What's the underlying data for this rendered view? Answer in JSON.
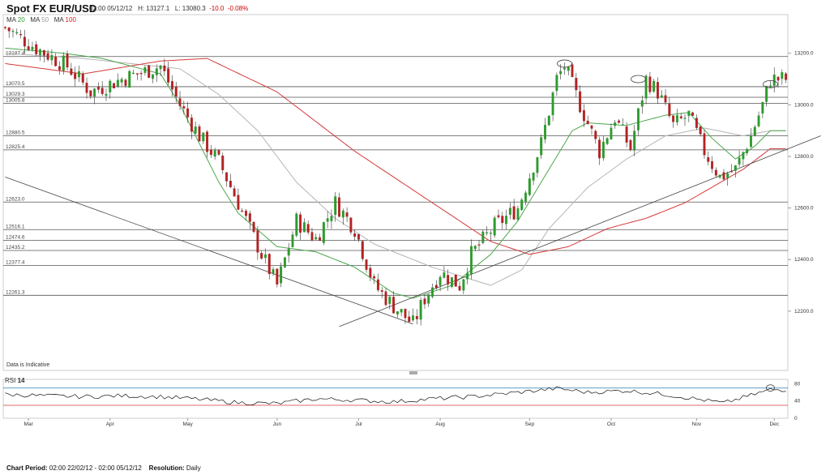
{
  "header": {
    "title": "Spot FX EUR/USD",
    "datetime": "02:00 05/12/12",
    "high": "H: 13127.1",
    "low": "L: 13080.3",
    "change": "-10.0",
    "change_pct": "-0.08%"
  },
  "ma_legend": {
    "ma20": {
      "label": "MA",
      "period": "20",
      "color": "#2e9a2e"
    },
    "ma50": {
      "label": "MA",
      "period": "50",
      "color": "#aaaaaa"
    },
    "ma100": {
      "label": "MA",
      "period": "100",
      "color": "#cc2222"
    }
  },
  "indicative_note": "Data is Indicative",
  "rsi": {
    "label": "RSI",
    "period": "14",
    "overbought": 70,
    "oversold": 30,
    "ticks": [
      "80",
      "40",
      "0"
    ]
  },
  "footer": {
    "period_label": "Chart Period:",
    "period_value": "02:00 22/02/12 - 02:00 05/12/12",
    "resolution_label": "Resolution:",
    "resolution_value": "Daily"
  },
  "colors": {
    "up": "#2e9a2e",
    "down": "#b22222",
    "ma20": "#4ca64c",
    "ma50": "#b5b5b5",
    "ma100": "#d43a3a",
    "rsi_line": "#111111",
    "rsi_ob": "#4a90c0",
    "rsi_os": "#d43a3a"
  },
  "chart_data": {
    "type": "candlestick",
    "title": "Spot FX EUR/USD",
    "ylim": [
      11970,
      13350
    ],
    "y_ticks": [
      "13200.0",
      "13000.0",
      "12800.0",
      "12600.0",
      "12400.0",
      "12200.0"
    ],
    "y_tick_values": [
      13200,
      13000,
      12800,
      12600,
      12400,
      12200
    ],
    "x_labels": [
      "Mar",
      "Apr",
      "May",
      "Jun",
      "Jul",
      "Aug",
      "Sep",
      "Oct",
      "Nov",
      "Dec"
    ],
    "levels": [
      {
        "label": "13187.4",
        "value": 13187.4
      },
      {
        "label": "13070.5",
        "value": 13070.5
      },
      {
        "label": "13029.3",
        "value": 13029.3
      },
      {
        "label": "13005.8",
        "value": 13005.8
      },
      {
        "label": "12880.5",
        "value": 12880.5
      },
      {
        "label": "12825.4",
        "value": 12825.4
      },
      {
        "label": "12623.0",
        "value": 12623.0
      },
      {
        "label": "12516.1",
        "value": 12516.1
      },
      {
        "label": "12474.6",
        "value": 12474.6
      },
      {
        "label": "12435.2",
        "value": 12435.2
      },
      {
        "label": "12377.4",
        "value": 12377.4
      },
      {
        "label": "12261.3",
        "value": 12261.3
      }
    ],
    "close_waypoints": [
      [
        0,
        13300
      ],
      [
        8,
        13220
      ],
      [
        16,
        13150
      ],
      [
        22,
        13050
      ],
      [
        30,
        13100
      ],
      [
        40,
        13150
      ],
      [
        45,
        13000
      ],
      [
        50,
        12880
      ],
      [
        55,
        12780
      ],
      [
        60,
        12620
      ],
      [
        66,
        12420
      ],
      [
        70,
        12300
      ],
      [
        75,
        12550
      ],
      [
        80,
        12480
      ],
      [
        85,
        12620
      ],
      [
        90,
        12520
      ],
      [
        95,
        12300
      ],
      [
        100,
        12220
      ],
      [
        105,
        12150
      ],
      [
        108,
        12250
      ],
      [
        112,
        12350
      ],
      [
        117,
        12300
      ],
      [
        120,
        12420
      ],
      [
        126,
        12530
      ],
      [
        132,
        12600
      ],
      [
        138,
        12850
      ],
      [
        142,
        13100
      ],
      [
        144,
        13150
      ],
      [
        148,
        13000
      ],
      [
        153,
        12820
      ],
      [
        157,
        12950
      ],
      [
        161,
        12830
      ],
      [
        165,
        13100
      ],
      [
        168,
        13050
      ],
      [
        172,
        12920
      ],
      [
        176,
        12960
      ],
      [
        180,
        12820
      ],
      [
        184,
        12720
      ],
      [
        188,
        12750
      ],
      [
        192,
        12880
      ],
      [
        195,
        13000
      ],
      [
        197,
        13100
      ]
    ],
    "ma20_points": [
      [
        0,
        13220
      ],
      [
        15,
        13200
      ],
      [
        25,
        13180
      ],
      [
        40,
        13120
      ],
      [
        45,
        13000
      ],
      [
        50,
        12850
      ],
      [
        55,
        12700
      ],
      [
        60,
        12580
      ],
      [
        70,
        12450
      ],
      [
        80,
        12430
      ],
      [
        90,
        12370
      ],
      [
        100,
        12270
      ],
      [
        105,
        12250
      ],
      [
        115,
        12300
      ],
      [
        125,
        12420
      ],
      [
        132,
        12550
      ],
      [
        140,
        12750
      ],
      [
        146,
        12900
      ],
      [
        150,
        12930
      ],
      [
        160,
        12920
      ],
      [
        170,
        12960
      ],
      [
        176,
        12970
      ],
      [
        182,
        12870
      ],
      [
        188,
        12790
      ],
      [
        193,
        12840
      ],
      [
        197,
        12900
      ]
    ],
    "ma50_points": [
      [
        0,
        13200
      ],
      [
        20,
        13180
      ],
      [
        45,
        13140
      ],
      [
        55,
        13040
      ],
      [
        65,
        12900
      ],
      [
        75,
        12700
      ],
      [
        85,
        12560
      ],
      [
        95,
        12460
      ],
      [
        110,
        12370
      ],
      [
        125,
        12300
      ],
      [
        133,
        12360
      ],
      [
        140,
        12520
      ],
      [
        150,
        12680
      ],
      [
        160,
        12790
      ],
      [
        170,
        12880
      ],
      [
        180,
        12910
      ],
      [
        190,
        12880
      ],
      [
        197,
        12900
      ]
    ],
    "ma100_points": [
      [
        0,
        13160
      ],
      [
        20,
        13120
      ],
      [
        40,
        13170
      ],
      [
        52,
        13180
      ],
      [
        70,
        13050
      ],
      [
        90,
        12820
      ],
      [
        110,
        12620
      ],
      [
        125,
        12470
      ],
      [
        135,
        12420
      ],
      [
        145,
        12450
      ],
      [
        155,
        12520
      ],
      [
        165,
        12560
      ],
      [
        175,
        12620
      ],
      [
        190,
        12750
      ],
      [
        197,
        12830
      ]
    ],
    "trendlines": [
      {
        "from": [
          0,
          12720
        ],
        "to": [
          105,
          12150
        ]
      },
      {
        "from": [
          86,
          12140
        ],
        "to": [
          210,
          12880
        ]
      }
    ],
    "circles": [
      {
        "x": 144,
        "y": 13160
      },
      {
        "x": 163,
        "y": 13100
      },
      {
        "x": 197,
        "y": 13080
      }
    ],
    "n_bars": 202,
    "x_label_index": [
      6,
      27,
      47,
      70,
      91,
      112,
      135,
      156,
      178,
      198
    ],
    "rsi_waypoints": [
      [
        0,
        55
      ],
      [
        10,
        52
      ],
      [
        20,
        50
      ],
      [
        30,
        52
      ],
      [
        40,
        50
      ],
      [
        50,
        44
      ],
      [
        60,
        36
      ],
      [
        70,
        34
      ],
      [
        80,
        45
      ],
      [
        90,
        42
      ],
      [
        100,
        38
      ],
      [
        110,
        45
      ],
      [
        120,
        50
      ],
      [
        130,
        58
      ],
      [
        142,
        69
      ],
      [
        150,
        60
      ],
      [
        160,
        64
      ],
      [
        170,
        55
      ],
      [
        180,
        42
      ],
      [
        185,
        35
      ],
      [
        190,
        48
      ],
      [
        197,
        66
      ]
    ]
  }
}
